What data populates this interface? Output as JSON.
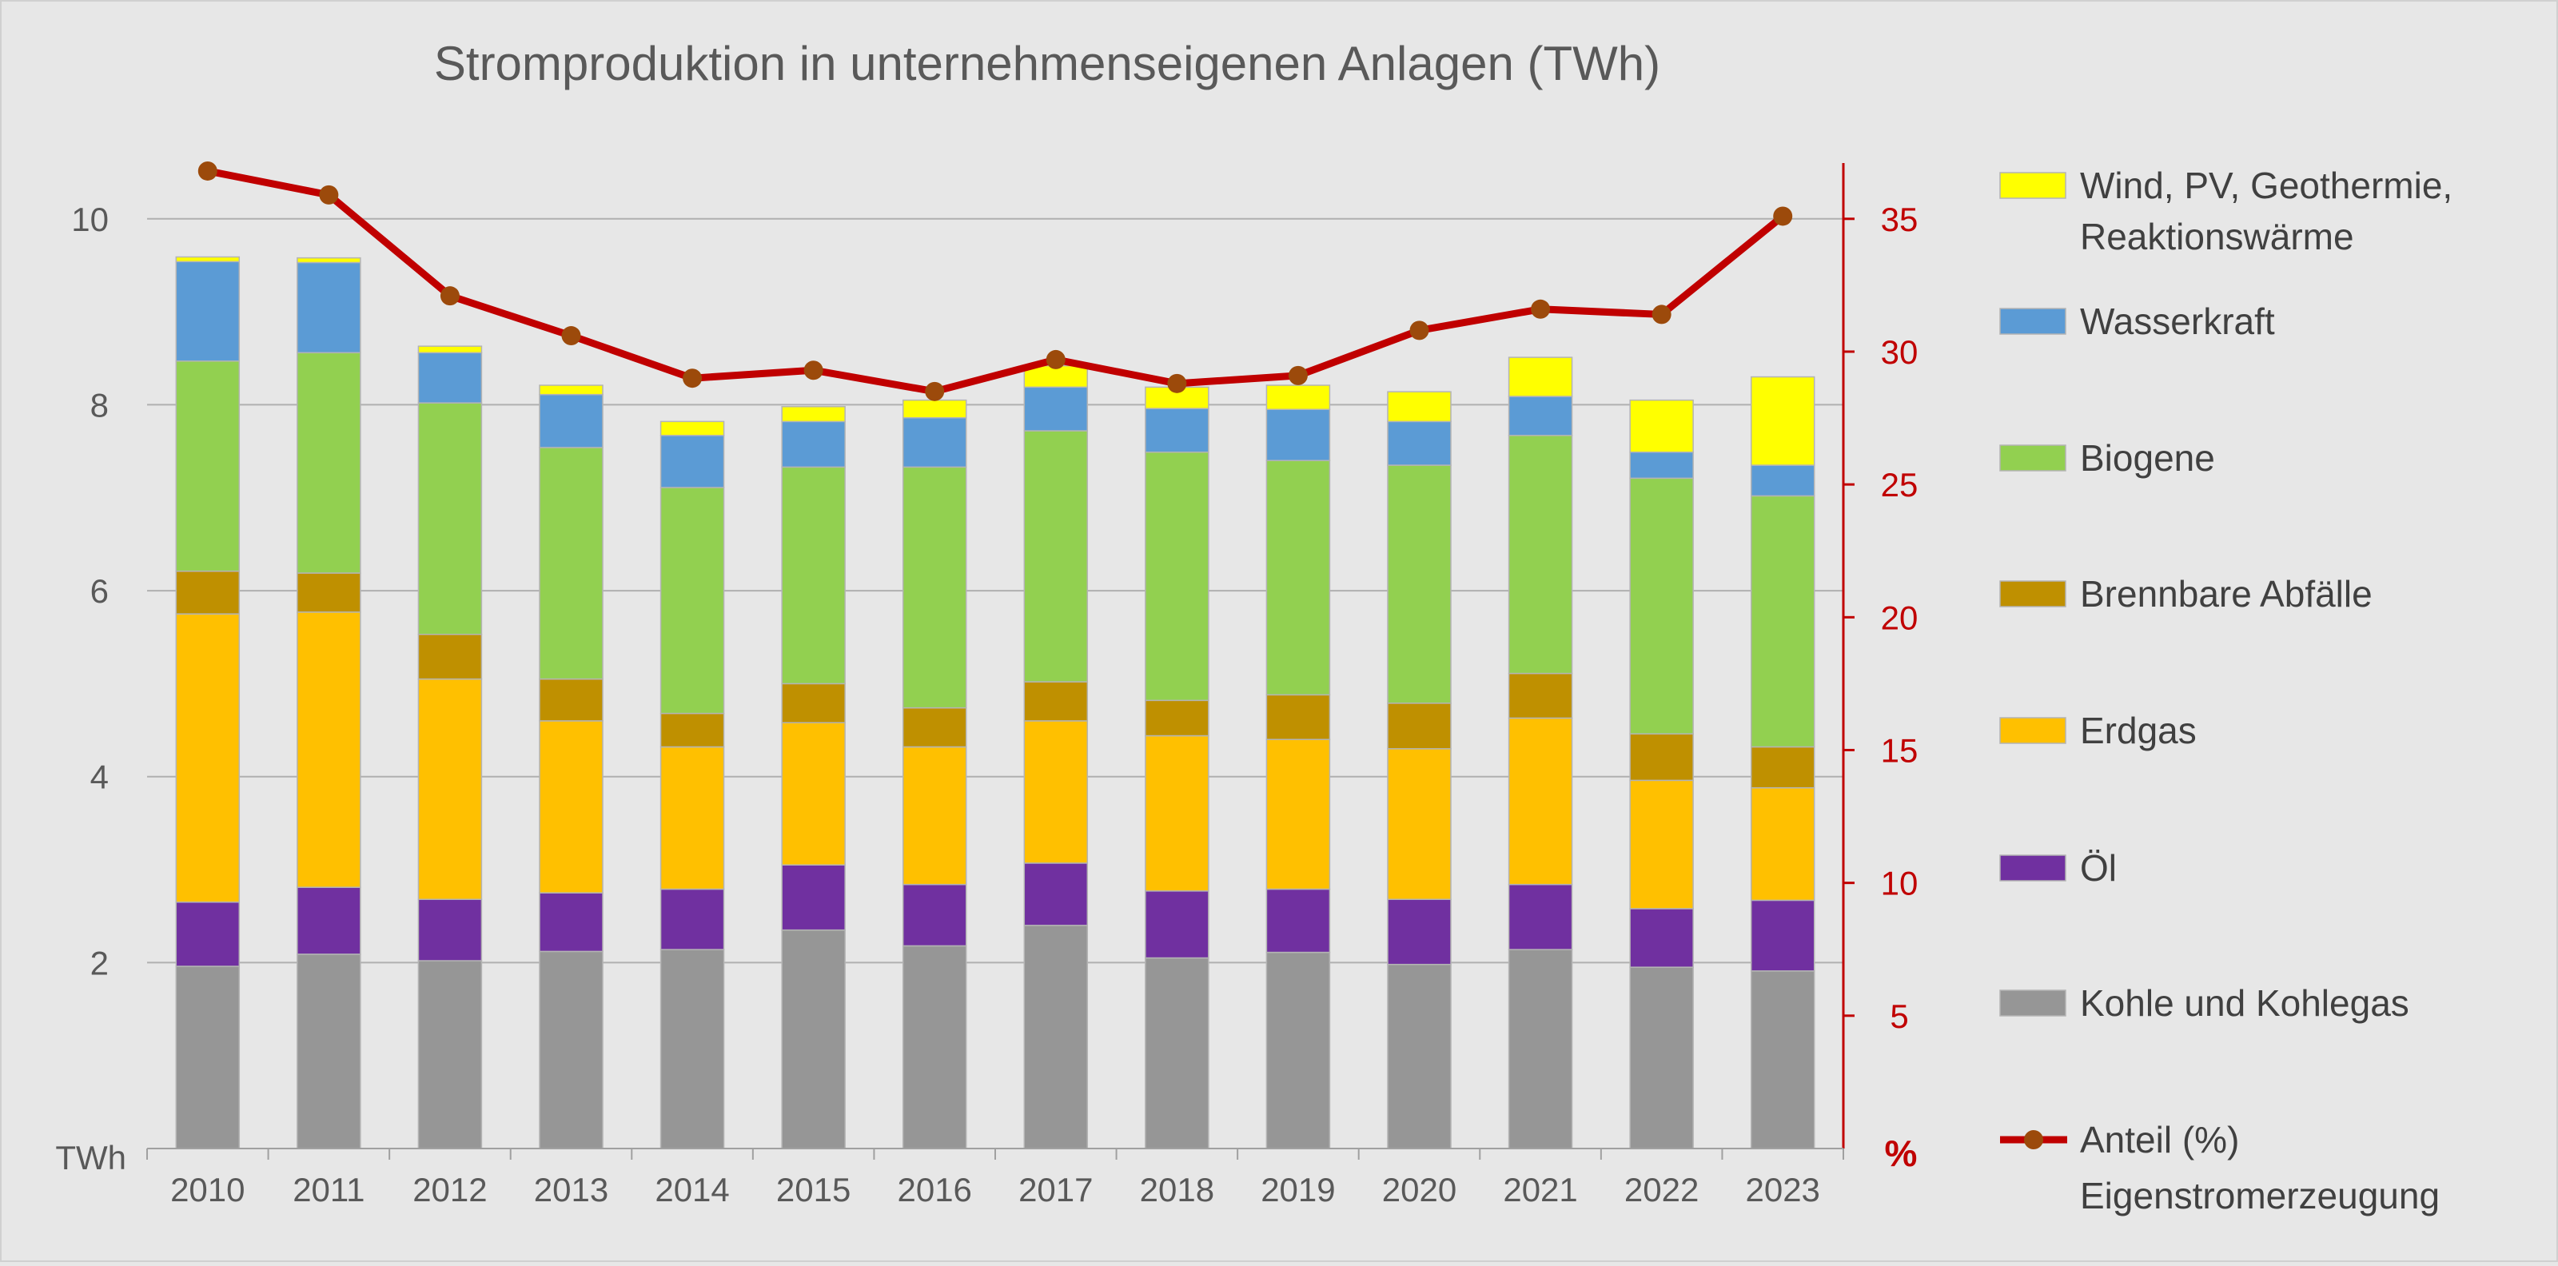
{
  "chart_data": {
    "type": "bar",
    "stacked": true,
    "title": "Stromproduktion in unternehmenseigenen Anlagen (TWh)",
    "ylabel": "TWh",
    "y2label": "%",
    "ylim": [
      0,
      10.6
    ],
    "y2lim": [
      0,
      37.1
    ],
    "yticks": [
      2,
      4,
      6,
      8,
      10
    ],
    "y2ticks": [
      5,
      10,
      15,
      20,
      25,
      30,
      35
    ],
    "grid": true,
    "legend_position": "right",
    "categories": [
      "2010",
      "2011",
      "2012",
      "2013",
      "2014",
      "2015",
      "2016",
      "2017",
      "2018",
      "2019",
      "2020",
      "2021",
      "2022",
      "2023"
    ],
    "series": [
      {
        "name": "Kohle und Kohlegas",
        "color": "#969696",
        "values": [
          1.96,
          2.09,
          2.02,
          2.12,
          2.14,
          2.35,
          2.18,
          2.4,
          2.05,
          2.11,
          1.98,
          2.14,
          1.95,
          1.91
        ]
      },
      {
        "name": "Öl",
        "color": "#7030a0",
        "values": [
          0.69,
          0.72,
          0.66,
          0.63,
          0.65,
          0.7,
          0.66,
          0.67,
          0.72,
          0.68,
          0.7,
          0.7,
          0.63,
          0.76
        ]
      },
      {
        "name": "Erdgas",
        "color": "#ffc000",
        "values": [
          3.1,
          2.96,
          2.37,
          1.85,
          1.53,
          1.53,
          1.48,
          1.53,
          1.67,
          1.61,
          1.62,
          1.79,
          1.38,
          1.21
        ]
      },
      {
        "name": "Brennbare Abfälle",
        "color": "#bf9000",
        "values": [
          0.46,
          0.42,
          0.48,
          0.45,
          0.36,
          0.42,
          0.42,
          0.42,
          0.38,
          0.48,
          0.49,
          0.48,
          0.5,
          0.44
        ]
      },
      {
        "name": "Biogene",
        "color": "#92d050",
        "values": [
          2.26,
          2.37,
          2.49,
          2.49,
          2.43,
          2.33,
          2.59,
          2.7,
          2.67,
          2.52,
          2.56,
          2.56,
          2.75,
          2.7
        ]
      },
      {
        "name": "Wasserkraft",
        "color": "#5b9bd5",
        "values": [
          1.07,
          0.97,
          0.54,
          0.57,
          0.56,
          0.49,
          0.53,
          0.47,
          0.47,
          0.55,
          0.47,
          0.42,
          0.28,
          0.33
        ]
      },
      {
        "name": "Wind, PV, Geothermie, Reaktionswärme",
        "name_lines": [
          "Wind, PV, Geothermie,",
          "Reaktionswärme"
        ],
        "color": "#ffff00",
        "values": [
          0.05,
          0.05,
          0.07,
          0.1,
          0.15,
          0.16,
          0.19,
          0.23,
          0.23,
          0.26,
          0.32,
          0.42,
          0.56,
          0.95
        ]
      }
    ],
    "line_series": {
      "name": "Anteil (%) Eigenstromerzeugung",
      "name_lines": [
        "Anteil (%)",
        "Eigenstromerzeugung"
      ],
      "axis": "right",
      "color": "#c00000",
      "marker_color": "#9c4a0b",
      "values": [
        36.8,
        35.9,
        32.1,
        30.6,
        29.0,
        29.3,
        28.5,
        29.7,
        28.8,
        29.1,
        30.8,
        31.6,
        31.4,
        35.1
      ]
    }
  }
}
